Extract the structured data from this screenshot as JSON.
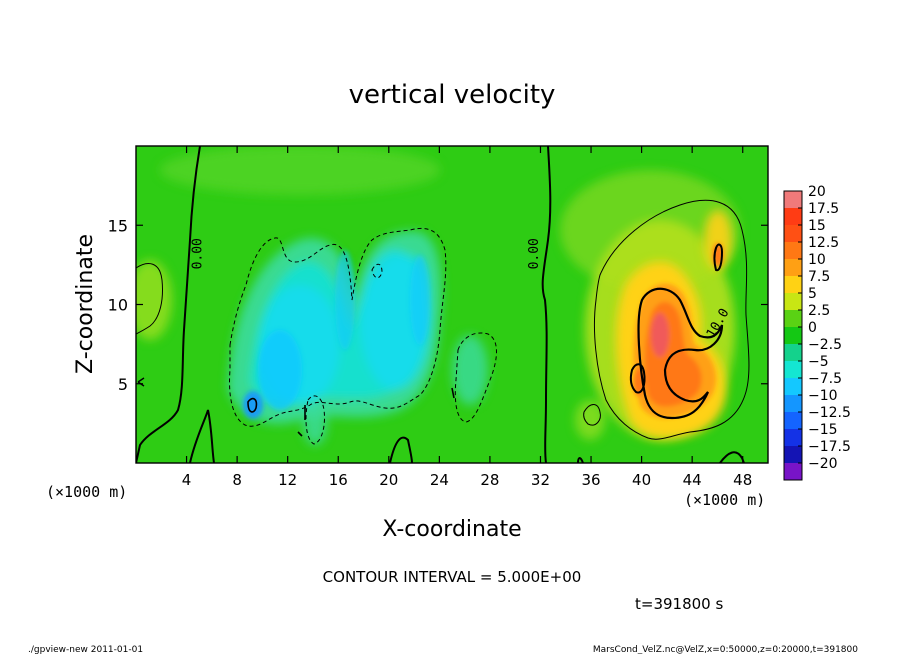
{
  "chart_data": {
    "type": "heatmap",
    "title": "vertical velocity",
    "xlabel": "X-coordinate",
    "ylabel": "Z-coordinate",
    "x_unit_left": "(×1000 m)",
    "x_unit_right": "(×1000 m)",
    "xlim": [
      0,
      50
    ],
    "ylim": [
      0,
      20
    ],
    "xticks": [
      4,
      8,
      12,
      16,
      20,
      24,
      28,
      32,
      36,
      40,
      44,
      48
    ],
    "yticks": [
      5,
      10,
      15
    ],
    "colorbar": {
      "levels": [
        20,
        17.5,
        15,
        12.5,
        10,
        7.5,
        5,
        2.5,
        0,
        -2.5,
        -5,
        -7.5,
        -10,
        -12.5,
        -15,
        -17.5,
        -20
      ],
      "labels": [
        "20",
        "17.5",
        "15",
        "12.5",
        "10",
        "7.5",
        "5",
        "2.5",
        "0",
        "−2.5",
        "−5",
        "−7.5",
        "−10",
        "−12.5",
        "−15",
        "−17.5",
        "−20"
      ],
      "colors": [
        "#f07a7a",
        "#ff3c14",
        "#ff5014",
        "#ff7814",
        "#ffa014",
        "#ffd214",
        "#c8e614",
        "#5ad214",
        "#14c814",
        "#14d28c",
        "#14e6d2",
        "#14c8ff",
        "#1496ff",
        "#1464ff",
        "#1432e6",
        "#1414b4",
        "#7814c8"
      ]
    },
    "contour_labels": [
      {
        "text": "0.00",
        "x": 5.2,
        "y": 13.2,
        "angle": -90
      },
      {
        "text": "0.00",
        "x": 31.8,
        "y": 13.2,
        "angle": -90
      },
      {
        "text": "10.0",
        "x": 46.3,
        "y": 8.7,
        "angle": -60
      }
    ],
    "contour_interval": "CONTOUR INTERVAL = 5.000E+00",
    "time": "t=391800 s"
  },
  "footer": {
    "left": "./gpview-new   2011-01-01",
    "right": "MarsCond_VelZ.nc@VelZ,x=0:50000,z=0:20000,t=391800"
  }
}
